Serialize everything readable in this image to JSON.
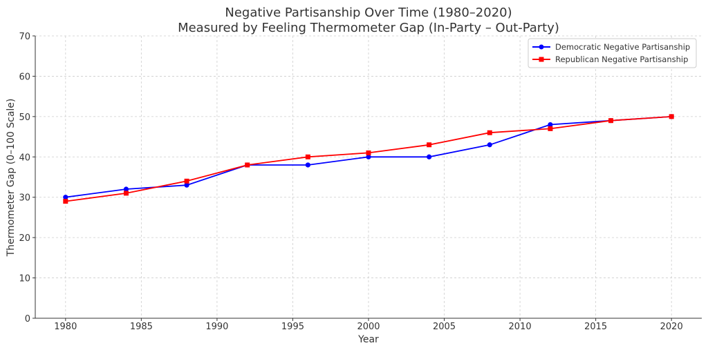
{
  "chart_data": {
    "type": "line",
    "title_line1": "Negative Partisanship Over Time (1980–2020)",
    "title_line2": "Measured by Feeling Thermometer Gap (In-Party – Out-Party)",
    "xlabel": "Year",
    "ylabel": "Thermometer Gap (0–100 Scale)",
    "xlim": [
      1978,
      2022
    ],
    "ylim": [
      0,
      70
    ],
    "x_ticks": [
      1980,
      1985,
      1990,
      1995,
      2000,
      2005,
      2010,
      2015,
      2020
    ],
    "y_ticks": [
      0,
      10,
      20,
      30,
      40,
      50,
      60,
      70
    ],
    "grid": true,
    "legend_position": "top-right",
    "x": [
      1980,
      1984,
      1988,
      1992,
      1996,
      2000,
      2004,
      2008,
      2012,
      2016,
      2020
    ],
    "series": [
      {
        "name": "Democratic Negative Partisanship",
        "color": "#0000ff",
        "marker": "circle",
        "values": [
          30,
          32,
          33,
          38,
          38,
          40,
          40,
          43,
          48,
          49,
          50
        ]
      },
      {
        "name": "Republican Negative Partisanship",
        "color": "#ff0000",
        "marker": "square",
        "values": [
          29,
          31,
          34,
          38,
          40,
          41,
          43,
          46,
          47,
          49,
          50
        ]
      }
    ]
  }
}
